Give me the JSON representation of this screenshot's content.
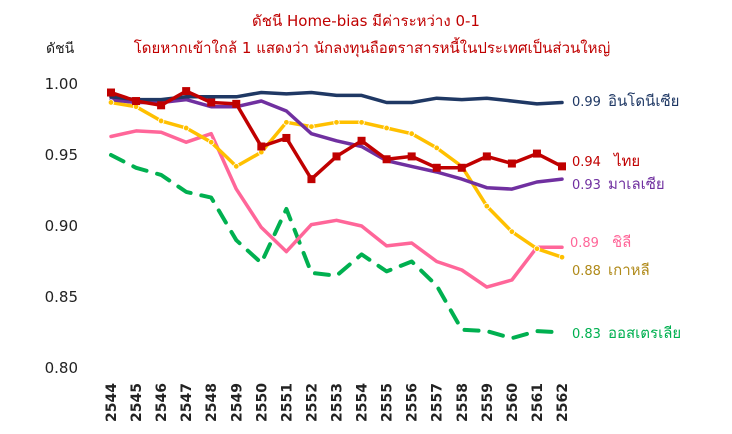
{
  "chart_data": {
    "type": "line",
    "title": "ดัชนี Home-bias มีค่าระหว่าง 0-1",
    "subtitle": "โดยหากเข้าใกล้ 1 แสดงว่า นักลงทุนถือตราสารหนี้ในประเทศเป็นส่วนใหญ่",
    "ylabel": "ดัชนี",
    "xlabel": "",
    "ylim": [
      0.8,
      1.0
    ],
    "yticks": [
      "0.80",
      "0.85",
      "0.90",
      "0.95",
      "1.00"
    ],
    "grid": false,
    "legend": "labels-at-line-ends",
    "x": [
      "2544",
      "2545",
      "2546",
      "2547",
      "2548",
      "2549",
      "2550",
      "2551",
      "2552",
      "2553",
      "2554",
      "2555",
      "2556",
      "2557",
      "2558",
      "2559",
      "2560",
      "2561",
      "2562"
    ],
    "series": [
      {
        "name": "อินโดนีเซีย",
        "end_label": "0.99",
        "color": "#1f3864",
        "style": "solid",
        "marker": "none",
        "values": [
          0.991,
          0.989,
          0.989,
          0.991,
          0.991,
          0.991,
          0.994,
          0.993,
          0.994,
          0.992,
          0.992,
          0.987,
          0.987,
          0.99,
          0.989,
          0.99,
          0.988,
          0.986,
          0.987
        ]
      },
      {
        "name": "ไทย",
        "end_label": "0.94",
        "color": "#c00000",
        "style": "solid",
        "marker": "square",
        "values": [
          0.994,
          0.988,
          0.985,
          0.995,
          0.987,
          0.986,
          0.956,
          0.962,
          0.933,
          0.949,
          0.96,
          0.947,
          0.949,
          0.941,
          0.941,
          0.949,
          0.944,
          0.951,
          0.942
        ]
      },
      {
        "name": "มาเลเซีย",
        "end_label": "0.93",
        "color": "#7030a0",
        "style": "solid",
        "marker": "none",
        "values": [
          0.989,
          0.987,
          0.987,
          0.989,
          0.984,
          0.984,
          0.988,
          0.981,
          0.965,
          0.96,
          0.956,
          0.946,
          0.942,
          0.938,
          0.933,
          0.927,
          0.926,
          0.931,
          0.933
        ]
      },
      {
        "name": "ชิลี",
        "end_label": "0.89",
        "color": "#ff6699",
        "style": "solid",
        "marker": "none",
        "values": [
          0.963,
          0.967,
          0.966,
          0.959,
          0.965,
          0.926,
          0.899,
          0.882,
          0.901,
          0.904,
          0.9,
          0.886,
          0.888,
          0.875,
          0.869,
          0.857,
          0.862,
          0.885,
          0.885
        ]
      },
      {
        "name": "เกาหลี",
        "end_label": "0.88",
        "color": "#ffc000",
        "style": "solid",
        "marker": "dot",
        "values": [
          0.987,
          0.984,
          0.974,
          0.969,
          0.959,
          0.942,
          0.952,
          0.973,
          0.97,
          0.973,
          0.973,
          0.969,
          0.965,
          0.955,
          0.942,
          0.914,
          0.896,
          0.884,
          0.878
        ]
      },
      {
        "name": "ออสเตรเลีย",
        "end_label": "0.83",
        "color": "#00b050",
        "style": "dashed",
        "marker": "none",
        "values": [
          0.95,
          0.941,
          0.936,
          0.924,
          0.92,
          0.89,
          0.874,
          0.912,
          0.867,
          0.865,
          0.88,
          0.868,
          0.875,
          0.858,
          0.827,
          0.826,
          0.821,
          0.826,
          0.825
        ]
      }
    ]
  }
}
